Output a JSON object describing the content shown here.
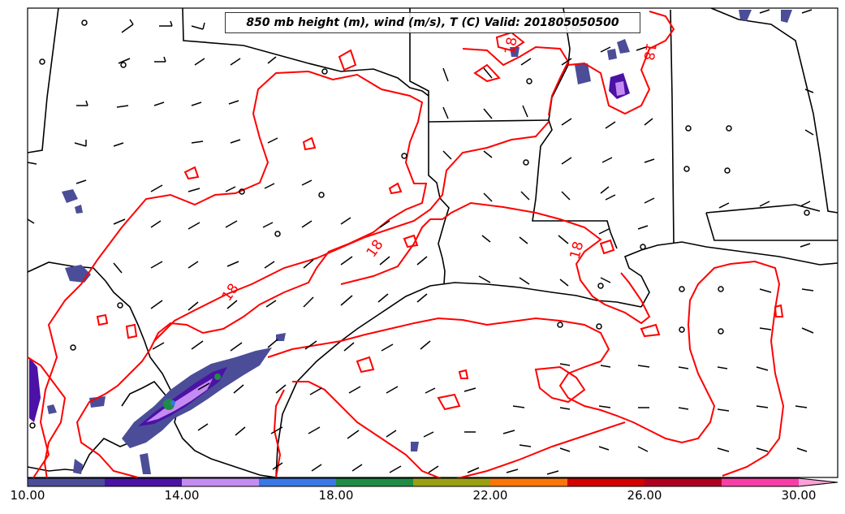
{
  "title": "850 mb height (m), wind (m/s), T (C) Valid: 201805050500",
  "contour_label": "18",
  "colorbar": {
    "ticks": [
      "10.00",
      "14.00",
      "18.00",
      "22.00",
      "26.00",
      "30.00"
    ],
    "colors": [
      "#4b4d99",
      "#4b12a5",
      "#c48cf2",
      "#3a78e6",
      "#1f8c45",
      "#9aa013",
      "#fb7508",
      "#d40000",
      "#ae0020",
      "#f73ea6",
      "#fca0d8"
    ]
  },
  "styles": {
    "contour_color": "#ff0000",
    "border_color": "#000000",
    "wind_barb_color": "#000000"
  }
}
